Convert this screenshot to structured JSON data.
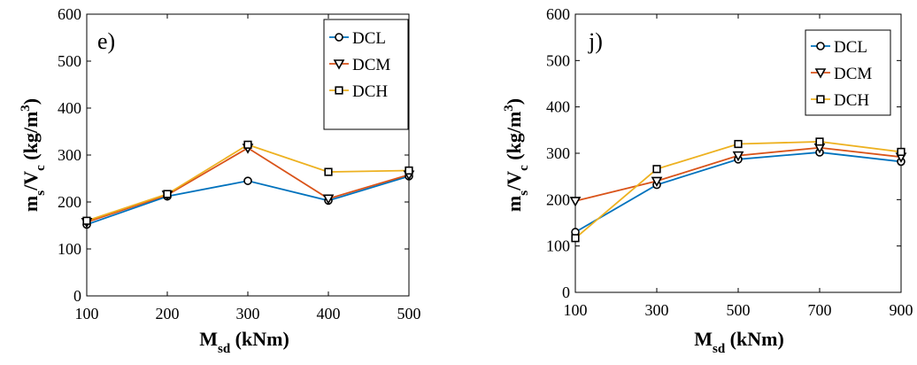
{
  "colors": {
    "DCL": "#0072BD",
    "DCM": "#D95319",
    "DCH": "#EDB120"
  },
  "chart_data": [
    {
      "type": "line",
      "panel_label": "e)",
      "xlabel": "M",
      "xlabel_sub": "sd",
      "xlabel_unit": " (kNm)",
      "ylabel": "m",
      "ylabel_sub1": "s",
      "ylabel_mid": "/V",
      "ylabel_sub2": "c",
      "ylabel_unit": "  (kg/m",
      "ylabel_sup": "3",
      "ylabel_close": ")",
      "x": [
        100,
        200,
        300,
        400,
        500
      ],
      "xlim": [
        100,
        500
      ],
      "xticks": [
        "100",
        "200",
        "300",
        "400",
        "500"
      ],
      "ylim": [
        0,
        600
      ],
      "yticks": [
        "0",
        "100",
        "200",
        "300",
        "400",
        "500",
        "600"
      ],
      "legend_position": "top-right",
      "series": [
        {
          "name": "DCL",
          "marker": "circle",
          "values": [
            152,
            212,
            245,
            203,
            255
          ]
        },
        {
          "name": "DCM",
          "marker": "triangle-down",
          "values": [
            157,
            215,
            315,
            207,
            258
          ]
        },
        {
          "name": "DCH",
          "marker": "square",
          "values": [
            160,
            217,
            322,
            264,
            267
          ]
        }
      ]
    },
    {
      "type": "line",
      "panel_label": "j)",
      "xlabel": "M",
      "xlabel_sub": "sd",
      "xlabel_unit": " (kNm)",
      "ylabel": "m",
      "ylabel_sub1": "s",
      "ylabel_mid": "/V",
      "ylabel_sub2": "c",
      "ylabel_unit": "  (kg/m",
      "ylabel_sup": "3",
      "ylabel_close": ")",
      "x": [
        100,
        300,
        500,
        700,
        900
      ],
      "xlim": [
        100,
        900
      ],
      "xticks": [
        "100",
        "300",
        "500",
        "700",
        "900"
      ],
      "ylim": [
        0,
        600
      ],
      "yticks": [
        "0",
        "100",
        "200",
        "300",
        "400",
        "500",
        "600"
      ],
      "legend_position": "top-right",
      "series": [
        {
          "name": "DCL",
          "marker": "circle",
          "values": [
            130,
            232,
            287,
            302,
            282
          ]
        },
        {
          "name": "DCM",
          "marker": "triangle-down",
          "values": [
            197,
            240,
            295,
            312,
            292
          ]
        },
        {
          "name": "DCH",
          "marker": "square",
          "values": [
            117,
            266,
            320,
            325,
            303
          ]
        }
      ]
    }
  ]
}
